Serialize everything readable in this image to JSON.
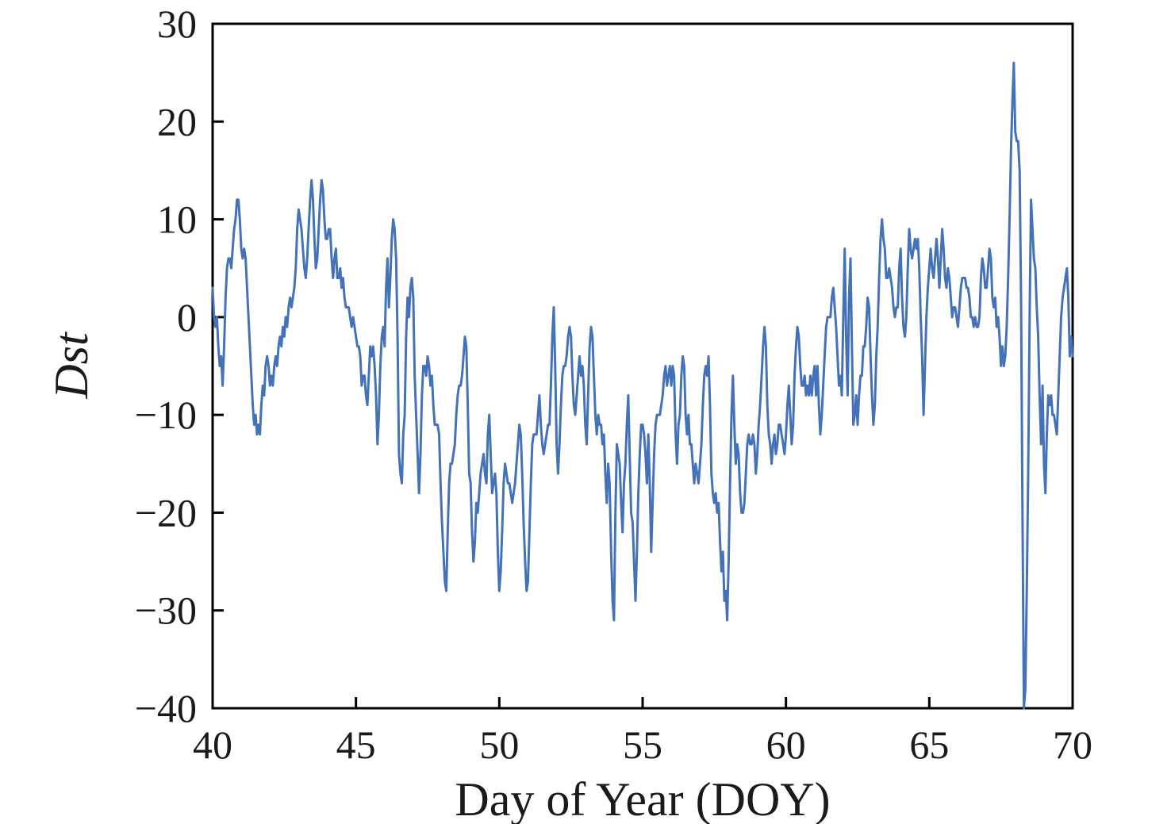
{
  "figure": {
    "background": "#ffffff",
    "frame_color": "#000000"
  },
  "chart_data": {
    "type": "line",
    "title": "",
    "xlabel": "Day of Year (DOY)",
    "ylabel": "Dst",
    "xlim": [
      40,
      70
    ],
    "ylim": [
      -40,
      30
    ],
    "xticks": [
      40,
      45,
      50,
      55,
      60,
      65,
      70
    ],
    "yticks": [
      30,
      20,
      10,
      0,
      -10,
      -20,
      -30,
      -40
    ],
    "grid": false,
    "legend": null,
    "line_color": "#4472b8",
    "series": [
      {
        "name": "Dst",
        "x_start": 40,
        "x_step": 0.05,
        "values": [
          3,
          0,
          -1,
          0,
          -3,
          -5,
          -4,
          -7,
          -3,
          2,
          5,
          6,
          6,
          5,
          7,
          9,
          10,
          12,
          12,
          10,
          7,
          6,
          7,
          6,
          3,
          0,
          -3,
          -6,
          -9,
          -11,
          -10,
          -12,
          -11,
          -12,
          -9,
          -7,
          -8,
          -5,
          -4,
          -5,
          -7,
          -6,
          -7,
          -5,
          -4,
          -5,
          -3,
          -2,
          -3,
          -1,
          -2,
          0,
          -1,
          1,
          2,
          1,
          2,
          3,
          5,
          9,
          11,
          10,
          9,
          7,
          5,
          4,
          6,
          9,
          12,
          14,
          12,
          8,
          5,
          6,
          9,
          12,
          14,
          13,
          10,
          8,
          8,
          9,
          9,
          6,
          4,
          6,
          7,
          4,
          4,
          5,
          3,
          4,
          2,
          1,
          1,
          1,
          0,
          -1,
          0,
          -1,
          -2,
          -3,
          -3,
          -4,
          -7,
          -6,
          -6,
          -8,
          -9,
          -6,
          -3,
          -4,
          -3,
          -5,
          -8,
          -13,
          -10,
          -5,
          -2,
          -1,
          -3,
          3,
          6,
          1,
          4,
          8,
          10,
          9,
          6,
          -2,
          -14,
          -16,
          -17,
          -12,
          -10,
          -2,
          2,
          0,
          3,
          4,
          2,
          -6,
          -10,
          -14,
          -18,
          -14,
          -8,
          -5,
          -5,
          -6,
          -4,
          -5,
          -7,
          -6,
          -9,
          -11,
          -11,
          -11,
          -12,
          -17,
          -21,
          -24,
          -27,
          -28,
          -22,
          -17,
          -15,
          -15,
          -14,
          -13,
          -10,
          -8,
          -7,
          -7,
          -6,
          -4,
          -2,
          -3,
          -9,
          -16,
          -17,
          -22,
          -25,
          -23,
          -19,
          -20,
          -18,
          -16,
          -15,
          -14,
          -16,
          -17,
          -12,
          -10,
          -14,
          -18,
          -17,
          -16,
          -18,
          -24,
          -28,
          -26,
          -22,
          -17,
          -15,
          -16,
          -17,
          -17,
          -18,
          -19,
          -18,
          -17,
          -15,
          -13,
          -11,
          -12,
          -16,
          -21,
          -25,
          -28,
          -27,
          -22,
          -17,
          -13,
          -12,
          -12,
          -12,
          -10,
          -8,
          -11,
          -13,
          -14,
          -13,
          -12,
          -11,
          -11,
          -7,
          -2,
          1,
          -5,
          -13,
          -16,
          -13,
          -9,
          -6,
          -5,
          -5,
          -4,
          -2,
          -1,
          -2,
          -6,
          -9,
          -10,
          -8,
          -6,
          -4,
          -6,
          -5,
          -7,
          -11,
          -13,
          -8,
          -3,
          -1,
          -2,
          -6,
          -10,
          -12,
          -10,
          -11,
          -11,
          -13,
          -12,
          -16,
          -19,
          -15,
          -17,
          -24,
          -29,
          -31,
          -20,
          -13,
          -14,
          -15,
          -19,
          -22,
          -17,
          -15,
          -11,
          -8,
          -14,
          -20,
          -21,
          -25,
          -29,
          -24,
          -18,
          -14,
          -11,
          -11,
          -12,
          -14,
          -17,
          -12,
          -17,
          -24,
          -19,
          -14,
          -11,
          -10,
          -10,
          -10,
          -9,
          -8,
          -6,
          -5,
          -7,
          -6,
          -5,
          -7,
          -5,
          -6,
          -12,
          -15,
          -11,
          -10,
          -6,
          -4,
          -5,
          -10,
          -12,
          -10,
          -13,
          -13,
          -15,
          -17,
          -15,
          -16,
          -17,
          -15,
          -13,
          -9,
          -6,
          -5,
          -6,
          -4,
          -9,
          -16,
          -18,
          -19,
          -18,
          -20,
          -19,
          -23,
          -26,
          -24,
          -29,
          -28,
          -31,
          -25,
          -17,
          -10,
          -6,
          -11,
          -15,
          -13,
          -14,
          -18,
          -20,
          -20,
          -19,
          -16,
          -13,
          -12,
          -13,
          -13,
          -12,
          -13,
          -16,
          -14,
          -11,
          -9,
          -6,
          -3,
          -1,
          -3,
          -9,
          -12,
          -13,
          -15,
          -13,
          -12,
          -14,
          -13,
          -11,
          -11,
          -12,
          -13,
          -14,
          -12,
          -9,
          -7,
          -10,
          -13,
          -11,
          -6,
          -3,
          -1,
          -2,
          -5,
          -7,
          -7,
          -6,
          -8,
          -7,
          -8,
          -6,
          -8,
          -6,
          -5,
          -8,
          -5,
          -9,
          -12,
          -10,
          -7,
          -4,
          -1,
          0,
          0,
          0,
          2,
          3,
          1,
          -1,
          -4,
          -7,
          -6,
          -8,
          0,
          7,
          -2,
          -8,
          2,
          6,
          -3,
          -11,
          -10,
          -8,
          -11,
          -8,
          -6,
          -6,
          -3,
          -3,
          -1,
          2,
          1,
          -4,
          -8,
          -11,
          -9,
          -4,
          -1,
          4,
          8,
          10,
          8,
          7,
          4,
          4,
          5,
          4,
          3,
          1,
          0,
          1,
          1,
          5,
          7,
          2,
          -1,
          -2,
          0,
          5,
          9,
          7,
          6,
          7,
          8,
          7,
          8,
          5,
          0,
          -4,
          -10,
          -5,
          0,
          3,
          5,
          7,
          5,
          4,
          6,
          8,
          6,
          3,
          6,
          9,
          7,
          4,
          3,
          5,
          4,
          2,
          0,
          1,
          1,
          0,
          -1,
          1,
          3,
          4,
          4,
          4,
          3,
          3,
          2,
          0,
          0,
          -1,
          0,
          -1,
          -1,
          0,
          4,
          6,
          5,
          3,
          3,
          5,
          7,
          6,
          2,
          1,
          2,
          -1,
          0,
          -2,
          -5,
          -3,
          -5,
          -4,
          -1,
          4,
          10,
          17,
          22,
          26,
          19,
          18,
          18,
          15,
          2,
          -20,
          -40,
          -38,
          -28,
          -16,
          0,
          12,
          9,
          6,
          5,
          1,
          -2,
          -8,
          -13,
          -7,
          -15,
          -18,
          -12,
          -8,
          -9,
          -8,
          -10,
          -10,
          -11,
          -12,
          -8,
          -4,
          0,
          2,
          3,
          4,
          5,
          2,
          -4,
          -2,
          -4
        ]
      }
    ]
  }
}
